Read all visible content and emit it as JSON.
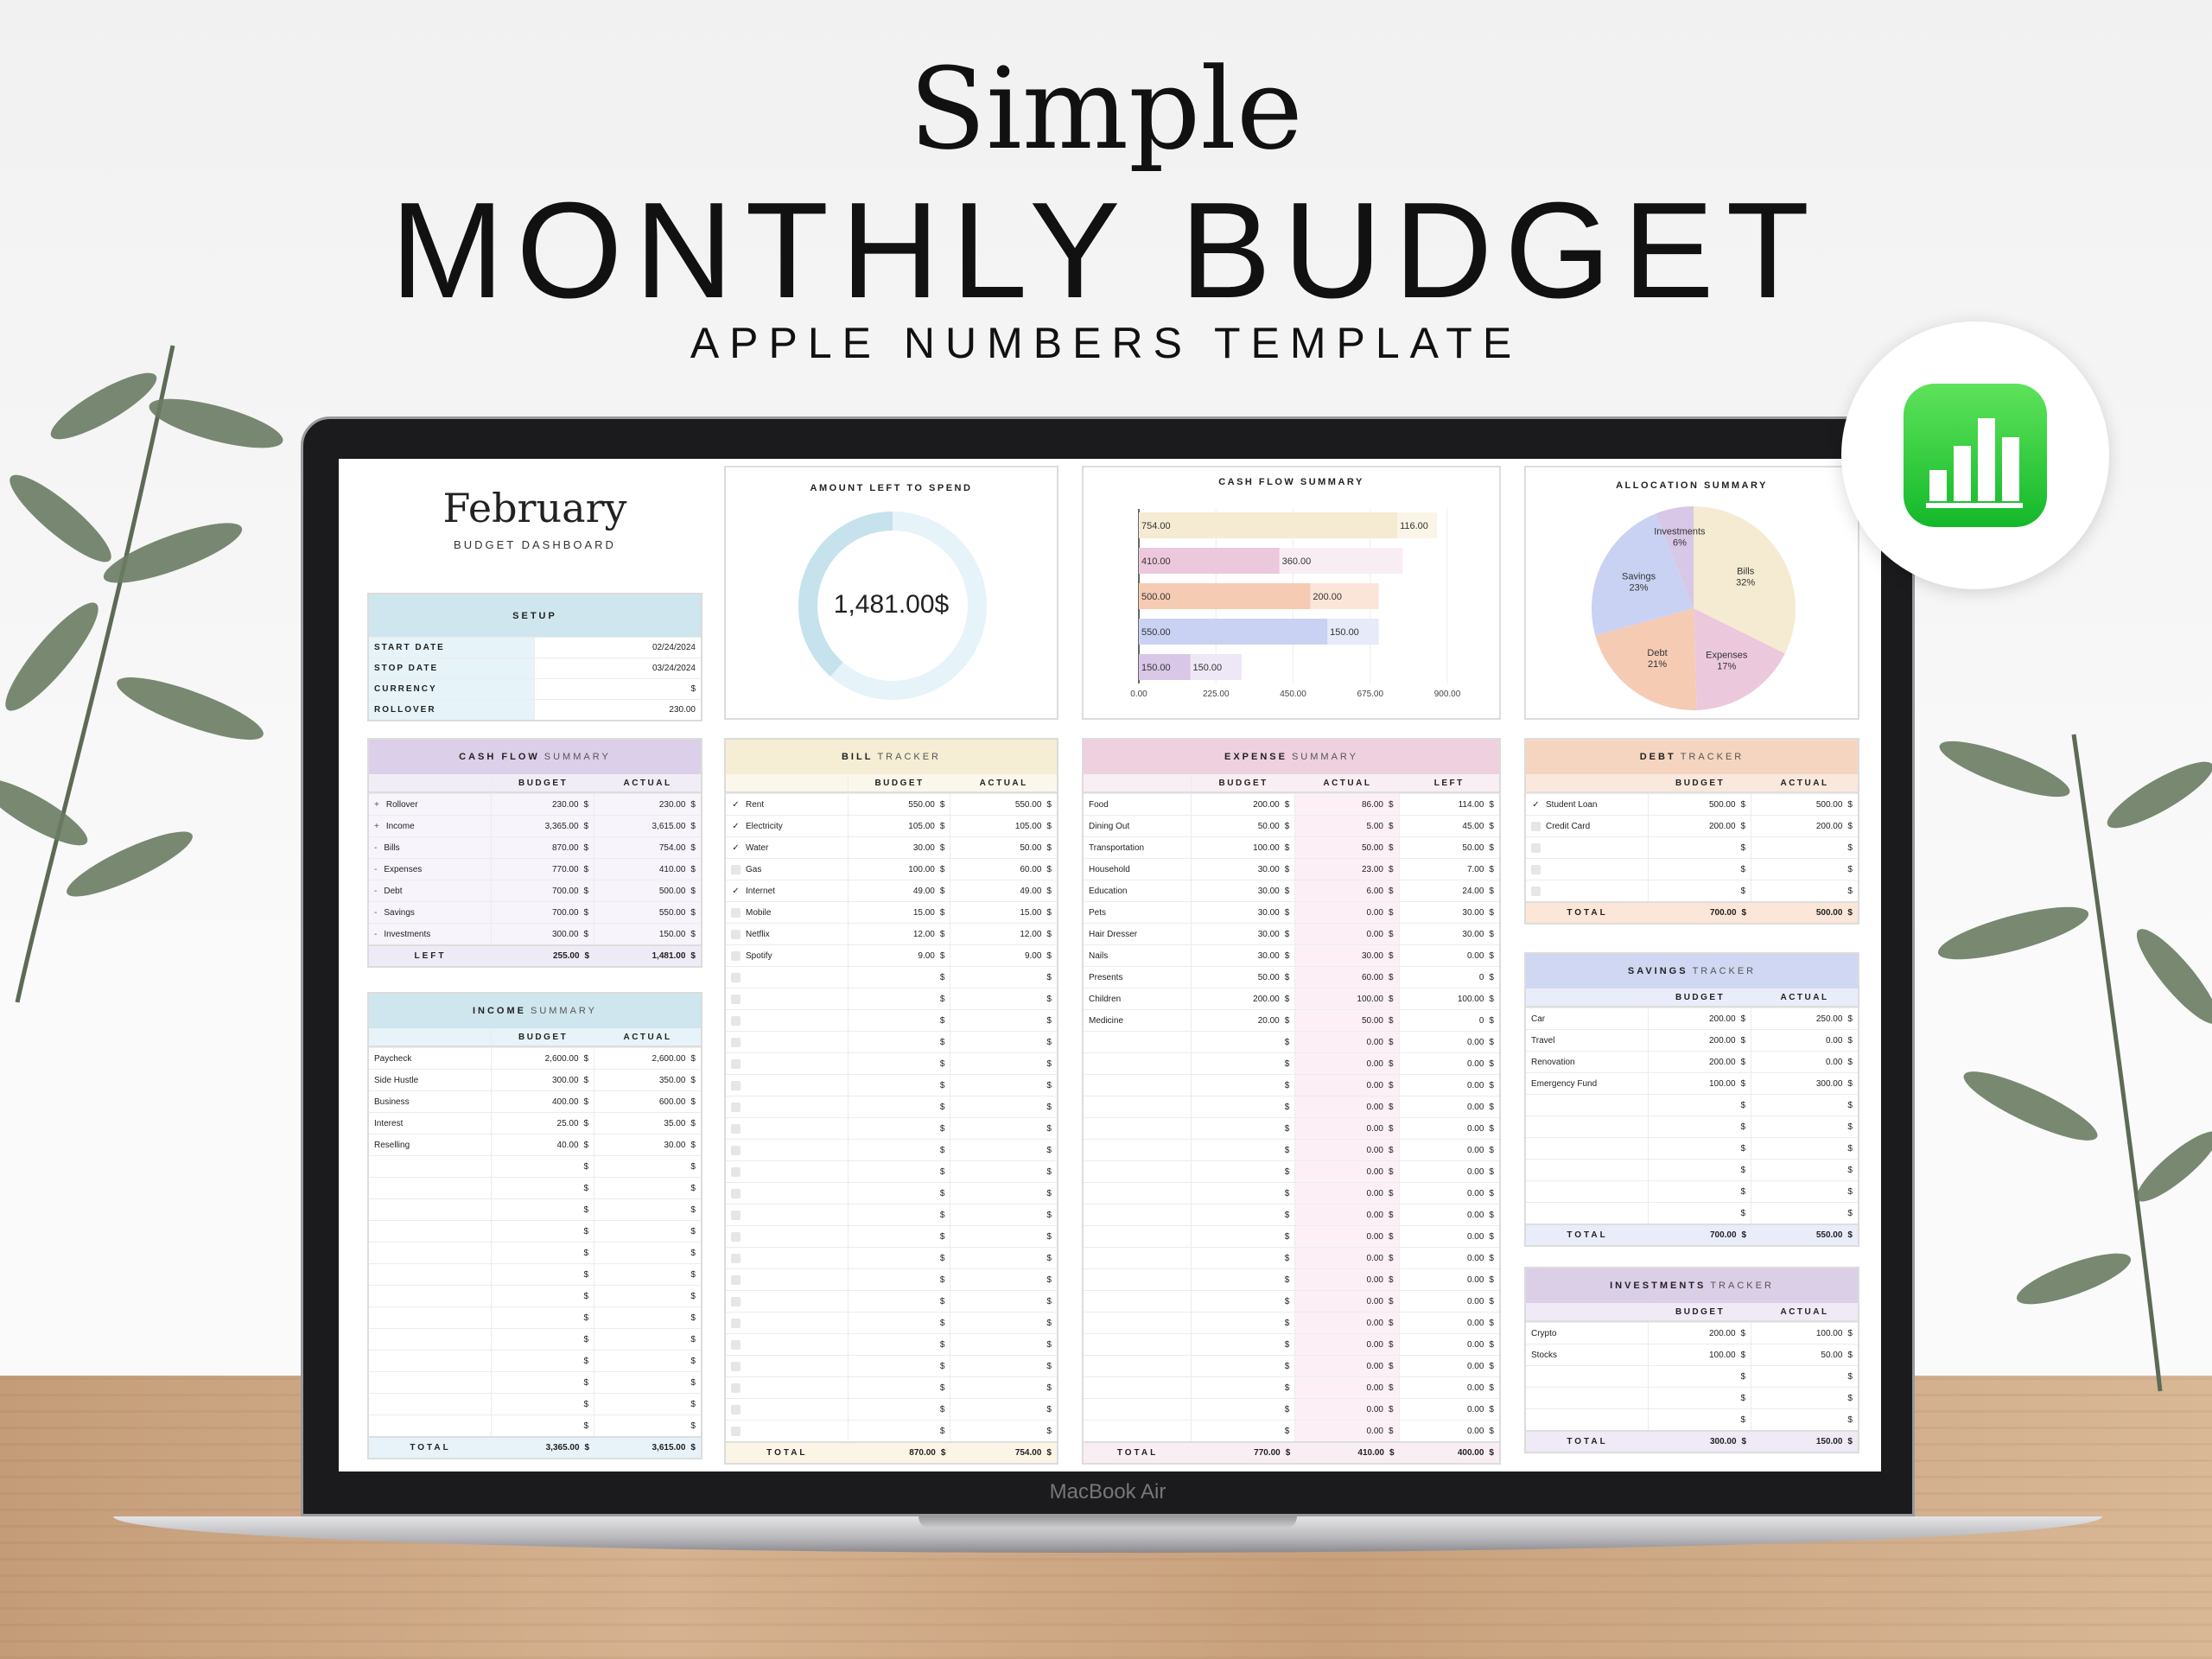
{
  "hero": {
    "title_script": "Simple",
    "title_main": "MONTHLY BUDGET",
    "subtitle": "APPLE NUMBERS TEMPLATE"
  },
  "device": {
    "label": "MacBook Air",
    "app_icon": "numbers-app-icon"
  },
  "dashboard": {
    "month": "February",
    "subtitle": "BUDGET DASHBOARD"
  },
  "setup": {
    "title": "SETUP",
    "rows": [
      {
        "label": "START DATE",
        "value": "02/24/2024"
      },
      {
        "label": "STOP DATE",
        "value": "03/24/2024"
      },
      {
        "label": "CURRENCY",
        "value": "$"
      },
      {
        "label": "ROLLOVER",
        "value": "230.00"
      }
    ]
  },
  "amount_left": {
    "title": "AMOUNT LEFT TO SPEND",
    "value": "1,481.00$",
    "fraction_left": 0.385,
    "colors": {
      "left": "#c6e2ec",
      "rest": "#e6f3f8"
    }
  },
  "chart_data": [
    {
      "type": "bar",
      "orientation": "horizontal",
      "stacked": true,
      "title": "CASH FLOW SUMMARY",
      "categories": [
        "Bills",
        "Expenses",
        "Debt",
        "Savings",
        "Investments"
      ],
      "series": [
        {
          "values": [
            754,
            410,
            500,
            550,
            150
          ],
          "labels": [
            "754.00",
            "410.00",
            "500.00",
            "550.00",
            "150.00"
          ]
        },
        {
          "values": [
            116,
            360,
            200,
            150,
            150
          ],
          "labels": [
            "116.00",
            "360.00",
            "200.00",
            "150.00",
            "150.00"
          ]
        }
      ],
      "xlim": [
        0,
        900
      ],
      "xticks": [
        "0.00",
        "225.00",
        "450.00",
        "675.00",
        "900.00"
      ],
      "grid": true,
      "colors": [
        [
          "#f4ebd2",
          "#faf5e6"
        ],
        [
          "#ecc8dc",
          "#f9edf4"
        ],
        [
          "#f5cbb4",
          "#fbe5d9"
        ],
        [
          "#c9d2f3",
          "#e6eaf9"
        ],
        [
          "#d8c7e6",
          "#eee7f5"
        ]
      ]
    },
    {
      "type": "pie",
      "title": "ALLOCATION SUMMARY",
      "slices": [
        {
          "label": "Bills",
          "value": 32,
          "pct": "32%",
          "color": "#f4ebd2"
        },
        {
          "label": "Expenses",
          "value": 17,
          "pct": "17%",
          "color": "#ecc8dc"
        },
        {
          "label": "Debt",
          "value": 21,
          "pct": "21%",
          "color": "#f5cbb4"
        },
        {
          "label": "Savings",
          "value": 23,
          "pct": "23%",
          "color": "#c9d2f3"
        },
        {
          "label": "Investments",
          "value": 6,
          "pct": "6%",
          "color": "#d8c7e6"
        }
      ]
    }
  ],
  "tables": {
    "cashflow": {
      "bold": "CASH FLOW",
      "light": "SUMMARY",
      "cols": [
        "BUDGET",
        "ACTUAL"
      ],
      "colors": {
        "head": "#dccfe9",
        "sub": "#f1edf7",
        "body": "#f7f4fb",
        "total": "#efebf6"
      },
      "rows": [
        {
          "sign": "+",
          "name": "Rollover",
          "v": [
            "230.00",
            "230.00"
          ]
        },
        {
          "sign": "+",
          "name": "Income",
          "v": [
            "3,365.00",
            "3,615.00"
          ]
        },
        {
          "sign": "-",
          "name": "Bills",
          "v": [
            "870.00",
            "754.00"
          ]
        },
        {
          "sign": "-",
          "name": "Expenses",
          "v": [
            "770.00",
            "410.00"
          ]
        },
        {
          "sign": "-",
          "name": "Debt",
          "v": [
            "700.00",
            "500.00"
          ]
        },
        {
          "sign": "-",
          "name": "Savings",
          "v": [
            "700.00",
            "550.00"
          ]
        },
        {
          "sign": "-",
          "name": "Investments",
          "v": [
            "300.00",
            "150.00"
          ]
        }
      ],
      "total": {
        "label": "LEFT",
        "v": [
          "255.00",
          "1,481.00"
        ]
      }
    },
    "income": {
      "bold": "INCOME",
      "light": "SUMMARY",
      "cols": [
        "BUDGET",
        "ACTUAL"
      ],
      "colors": {
        "head": "#cfe6ef",
        "sub": "#e6f3f8",
        "body": "#ffffff",
        "total": "#e8f3f9"
      },
      "rows": [
        {
          "name": "Paycheck",
          "v": [
            "2,600.00",
            "2,600.00"
          ]
        },
        {
          "name": "Side Hustle",
          "v": [
            "300.00",
            "350.00"
          ]
        },
        {
          "name": "Business",
          "v": [
            "400.00",
            "600.00"
          ]
        },
        {
          "name": "Interest",
          "v": [
            "25.00",
            "35.00"
          ]
        },
        {
          "name": "Reselling",
          "v": [
            "40.00",
            "30.00"
          ]
        },
        {},
        {},
        {},
        {},
        {},
        {},
        {},
        {},
        {},
        {},
        {},
        {},
        {}
      ],
      "total": {
        "label": "TOTAL",
        "v": [
          "3,365.00",
          "3,615.00"
        ]
      }
    },
    "bills": {
      "bold": "BILL",
      "light": "TRACKER",
      "check": true,
      "cols": [
        "BUDGET",
        "ACTUAL"
      ],
      "colors": {
        "head": "#f5eed5",
        "sub": "#fbf7ea",
        "body": "#ffffff",
        "total": "#fbf5e6"
      },
      "rows": [
        {
          "paid": true,
          "name": "Rent",
          "v": [
            "550.00",
            "550.00"
          ]
        },
        {
          "paid": true,
          "name": "Electricity",
          "v": [
            "105.00",
            "105.00"
          ]
        },
        {
          "paid": true,
          "name": "Water",
          "v": [
            "30.00",
            "50.00"
          ]
        },
        {
          "paid": false,
          "name": "Gas",
          "v": [
            "100.00",
            "60.00"
          ]
        },
        {
          "paid": true,
          "name": "Internet",
          "v": [
            "49.00",
            "49.00"
          ]
        },
        {
          "paid": false,
          "name": "Mobile",
          "v": [
            "15.00",
            "15.00"
          ]
        },
        {
          "paid": false,
          "name": "Netflix",
          "v": [
            "12.00",
            "12.00"
          ]
        },
        {
          "paid": false,
          "name": "Spotify",
          "v": [
            "9.00",
            "9.00"
          ]
        },
        {},
        {},
        {},
        {},
        {},
        {},
        {},
        {},
        {},
        {},
        {},
        {},
        {},
        {},
        {},
        {},
        {},
        {},
        {},
        {},
        {},
        {}
      ],
      "total": {
        "label": "TOTAL",
        "v": [
          "870.00",
          "754.00"
        ]
      }
    },
    "expenses": {
      "bold": "EXPENSE",
      "light": "SUMMARY",
      "cols": [
        "BUDGET",
        "ACTUAL",
        "LEFT"
      ],
      "colors": {
        "head": "#eed0df",
        "sub": "#f9eef4",
        "body": "#ffffff",
        "total": "#f9eef4",
        "accent": "#fcf0f6"
      },
      "rows": [
        {
          "name": "Food",
          "v": [
            "200.00",
            "86.00",
            "114.00"
          ]
        },
        {
          "name": "Dining Out",
          "v": [
            "50.00",
            "5.00",
            "45.00"
          ]
        },
        {
          "name": "Transportation",
          "v": [
            "100.00",
            "50.00",
            "50.00"
          ]
        },
        {
          "name": "Household",
          "v": [
            "30.00",
            "23.00",
            "7.00"
          ]
        },
        {
          "name": "Education",
          "v": [
            "30.00",
            "6.00",
            "24.00"
          ]
        },
        {
          "name": "Pets",
          "v": [
            "30.00",
            "0.00",
            "30.00"
          ]
        },
        {
          "name": "Hair Dresser",
          "v": [
            "30.00",
            "0.00",
            "30.00"
          ]
        },
        {
          "name": "Nails",
          "v": [
            "30.00",
            "30.00",
            "0.00"
          ]
        },
        {
          "name": "Presents",
          "v": [
            "50.00",
            "60.00",
            "0"
          ]
        },
        {
          "name": "Children",
          "v": [
            "200.00",
            "100.00",
            "100.00"
          ]
        },
        {
          "name": "Medicine",
          "v": [
            "20.00",
            "50.00",
            "0"
          ]
        },
        {
          "v": [
            "",
            "0.00",
            "0.00"
          ]
        },
        {
          "v": [
            "",
            "0.00",
            "0.00"
          ]
        },
        {
          "v": [
            "",
            "0.00",
            "0.00"
          ]
        },
        {
          "v": [
            "",
            "0.00",
            "0.00"
          ]
        },
        {
          "v": [
            "",
            "0.00",
            "0.00"
          ]
        },
        {
          "v": [
            "",
            "0.00",
            "0.00"
          ]
        },
        {
          "v": [
            "",
            "0.00",
            "0.00"
          ]
        },
        {
          "v": [
            "",
            "0.00",
            "0.00"
          ]
        },
        {
          "v": [
            "",
            "0.00",
            "0.00"
          ]
        },
        {
          "v": [
            "",
            "0.00",
            "0.00"
          ]
        },
        {
          "v": [
            "",
            "0.00",
            "0.00"
          ]
        },
        {
          "v": [
            "",
            "0.00",
            "0.00"
          ]
        },
        {
          "v": [
            "",
            "0.00",
            "0.00"
          ]
        },
        {
          "v": [
            "",
            "0.00",
            "0.00"
          ]
        },
        {
          "v": [
            "",
            "0.00",
            "0.00"
          ]
        },
        {
          "v": [
            "",
            "0.00",
            "0.00"
          ]
        },
        {
          "v": [
            "",
            "0.00",
            "0.00"
          ]
        },
        {
          "v": [
            "",
            "0.00",
            "0.00"
          ]
        },
        {
          "v": [
            "",
            "0.00",
            "0.00"
          ]
        }
      ],
      "total": {
        "label": "TOTAL",
        "v": [
          "770.00",
          "410.00",
          "400.00"
        ]
      }
    },
    "debt": {
      "bold": "DEBT",
      "light": "TRACKER",
      "check": true,
      "cols": [
        "BUDGET",
        "ACTUAL"
      ],
      "colors": {
        "head": "#f6d5c0",
        "sub": "#fbe8dc",
        "body": "#ffffff",
        "total": "#fbe6d8"
      },
      "rows": [
        {
          "paid": true,
          "name": "Student Loan",
          "v": [
            "500.00",
            "500.00"
          ]
        },
        {
          "paid": false,
          "name": "Credit Card",
          "v": [
            "200.00",
            "200.00"
          ]
        },
        {},
        {},
        {}
      ],
      "total": {
        "label": "TOTAL",
        "v": [
          "700.00",
          "500.00"
        ]
      }
    },
    "savings": {
      "bold": "SAVINGS",
      "light": "TRACKER",
      "cols": [
        "BUDGET",
        "ACTUAL"
      ],
      "colors": {
        "head": "#cfd7f3",
        "sub": "#e9edfa",
        "body": "#ffffff",
        "total": "#e9edfa"
      },
      "rows": [
        {
          "name": "Car",
          "v": [
            "200.00",
            "250.00"
          ]
        },
        {
          "name": "Travel",
          "v": [
            "200.00",
            "0.00"
          ]
        },
        {
          "name": "Renovation",
          "v": [
            "200.00",
            "0.00"
          ]
        },
        {
          "name": "Emergency Fund",
          "v": [
            "100.00",
            "300.00"
          ]
        },
        {},
        {},
        {},
        {},
        {},
        {}
      ],
      "total": {
        "label": "TOTAL",
        "v": [
          "700.00",
          "550.00"
        ]
      }
    },
    "investments": {
      "bold": "INVESTMENTS",
      "light": "TRACKER",
      "cols": [
        "BUDGET",
        "ACTUAL"
      ],
      "colors": {
        "head": "#dbcfe8",
        "sub": "#efeaf5",
        "body": "#ffffff",
        "total": "#efeaf5"
      },
      "rows": [
        {
          "name": "Crypto",
          "v": [
            "200.00",
            "100.00"
          ]
        },
        {
          "name": "Stocks",
          "v": [
            "100.00",
            "50.00"
          ]
        },
        {},
        {},
        {}
      ],
      "total": {
        "label": "TOTAL",
        "v": [
          "300.00",
          "150.00"
        ]
      }
    }
  }
}
